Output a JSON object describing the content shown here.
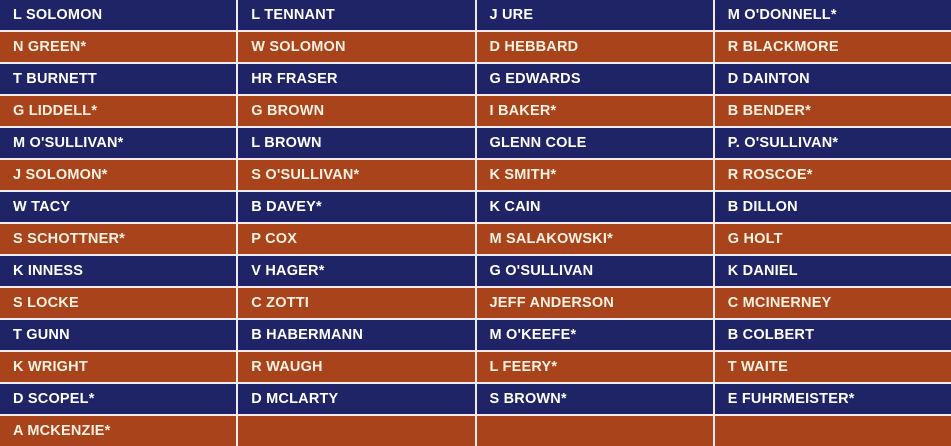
{
  "table": {
    "rows": [
      {
        "cells": [
          "L SOLOMON",
          "L TENNANT",
          "J URE",
          "M O'DONNELL*"
        ]
      },
      {
        "cells": [
          "N GREEN*",
          "W SOLOMON",
          "D HEBBARD",
          "R BLACKMORE"
        ]
      },
      {
        "cells": [
          "T BURNETT",
          "HR FRASER",
          "G EDWARDS",
          "D DAINTON"
        ]
      },
      {
        "cells": [
          "G LIDDELL*",
          "G BROWN",
          "I BAKER*",
          "B BENDER*"
        ]
      },
      {
        "cells": [
          "M O'SULLIVAN*",
          "L BROWN",
          "GLENN COLE",
          "P. O'SULLIVAN*"
        ]
      },
      {
        "cells": [
          "J SOLOMON*",
          "S O'SULLIVAN*",
          "K SMITH*",
          "R ROSCOE*"
        ]
      },
      {
        "cells": [
          "W TACY",
          "B DAVEY*",
          "K CAIN",
          "B DILLON"
        ]
      },
      {
        "cells": [
          "S SCHOTTNER*",
          "P COX",
          "M SALAKOWSKI*",
          "G HOLT"
        ]
      },
      {
        "cells": [
          "K INNESS",
          "V HAGER*",
          "G O'SULLIVAN",
          "K DANIEL"
        ]
      },
      {
        "cells": [
          "S LOCKE",
          "C ZOTTI",
          "JEFF ANDERSON",
          "C MCINERNEY"
        ]
      },
      {
        "cells": [
          "T GUNN",
          "B HABERMANN",
          "M O'KEEFE*",
          "B COLBERT"
        ]
      },
      {
        "cells": [
          "K WRIGHT",
          "R WAUGH",
          "L FEERY*",
          "T WAITE"
        ]
      },
      {
        "cells": [
          "D SCOPEL*",
          "D MCLARTY",
          "S BROWN*",
          "E FUHRMEISTER*"
        ]
      },
      {
        "cells": [
          "A MCKENZIE*",
          "",
          "",
          ""
        ]
      }
    ]
  },
  "colors": {
    "row_navy_bg": "#1f2466",
    "row_rust_bg": "#a9431b",
    "grid_line": "#f1ebee",
    "text_on_navy": "#ffffff",
    "text_on_rust": "#fbf2e2"
  }
}
